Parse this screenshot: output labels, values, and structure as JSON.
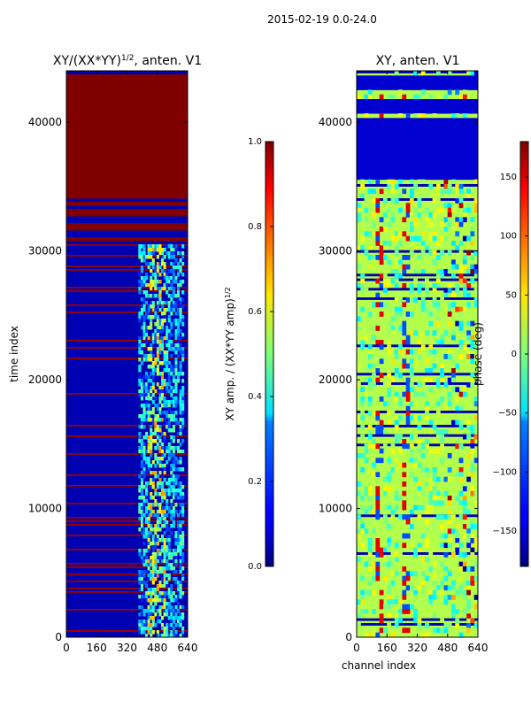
{
  "figure": {
    "suptitle": "2015-02-19 0.0-24.0"
  },
  "chart_data": [
    {
      "type": "heatmap",
      "title": "XY/(XX*YY)^{1/2}, anten. V1",
      "title_main": "XY/(XX*YY)",
      "title_sup": "1/2",
      "title_tail": ", anten. V1",
      "xlabel": "",
      "ylabel": "time index",
      "xlim": [
        0,
        640
      ],
      "ylim": [
        0,
        44000
      ],
      "xticks": [
        "0",
        "160",
        "320",
        "480",
        "640"
      ],
      "yticks": [
        "0",
        "10000",
        "20000",
        "30000",
        "40000"
      ],
      "colormap": "jet",
      "colorbar": {
        "label": "XY amp. / (XX*YY amp)^{1/2}",
        "label_main": "XY amp. / (XX*YY amp)",
        "label_sup": "1/2",
        "range": [
          0.0,
          1.0
        ],
        "ticks": [
          "0.0",
          "0.2",
          "0.4",
          "0.6",
          "0.8",
          "1.0"
        ]
      },
      "description_bands": [
        {
          "from": 30500,
          "to": 44000,
          "value": 1.0
        },
        {
          "from": 0,
          "to": 30500,
          "value": 0.1
        }
      ]
    },
    {
      "type": "heatmap",
      "title": "XY, anten. V1",
      "xlabel": "channel index",
      "ylabel": "",
      "xlim": [
        0,
        640
      ],
      "ylim": [
        0,
        44000
      ],
      "xticks": [
        "0",
        "160",
        "320",
        "480",
        "640"
      ],
      "yticks": [
        "0",
        "10000",
        "20000",
        "30000",
        "40000"
      ],
      "colormap": "jet",
      "colorbar": {
        "label": "phase (deg)",
        "range": [
          -180,
          180
        ],
        "ticks": [
          "−150",
          "−100",
          "−50",
          "0",
          "50",
          "100",
          "150"
        ],
        "tick_values": [
          -150,
          -100,
          -50,
          0,
          50,
          100,
          150
        ]
      }
    }
  ]
}
